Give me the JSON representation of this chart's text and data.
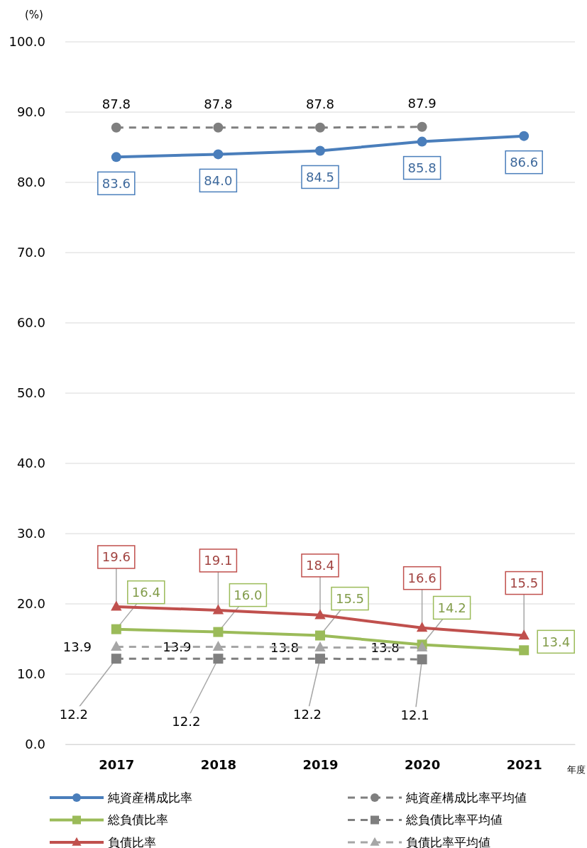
{
  "chart_data": {
    "type": "line",
    "ylabel": "(%)",
    "xlabel": "年度",
    "categories": [
      "2017",
      "2018",
      "2019",
      "2020",
      "2021"
    ],
    "ylim": [
      0,
      100
    ],
    "yticks": [
      {
        "value": 0,
        "label": "0.0"
      },
      {
        "value": 10,
        "label": "10.0"
      },
      {
        "value": 20,
        "label": "20.0"
      },
      {
        "value": 30,
        "label": "30.0"
      },
      {
        "value": 40,
        "label": "40.0"
      },
      {
        "value": 50,
        "label": "50.0"
      },
      {
        "value": 60,
        "label": "60.0"
      },
      {
        "value": 70,
        "label": "70.0"
      },
      {
        "value": 80,
        "label": "80.0"
      },
      {
        "value": 90,
        "label": "90.0"
      },
      {
        "value": 100,
        "label": "100.0"
      }
    ],
    "grid": "y",
    "legend": "bottom",
    "series": [
      {
        "name": "純資産構成比率",
        "color": "#4a7ebb",
        "marker": "circle",
        "line_style": "solid",
        "values": [
          83.6,
          84.0,
          84.5,
          85.8,
          86.6
        ],
        "value_labels": [
          "83.6",
          "84.0",
          "84.5",
          "85.8",
          "86.6"
        ]
      },
      {
        "name": "純資産構成比率平均値",
        "color": "#7f7f7f",
        "marker": "circle",
        "line_style": "dashed",
        "values": [
          87.8,
          87.8,
          87.8,
          87.9,
          null
        ],
        "value_labels": [
          "87.8",
          "87.8",
          "87.8",
          "87.9",
          null
        ]
      },
      {
        "name": "総負債比率",
        "color": "#9bbb59",
        "marker": "square",
        "line_style": "solid",
        "values": [
          16.4,
          16.0,
          15.5,
          14.2,
          13.4
        ],
        "value_labels": [
          "16.4",
          "16.0",
          "15.5",
          "14.2",
          "13.4"
        ]
      },
      {
        "name": "総負債比率平均値",
        "color": "#7f7f7f",
        "marker": "square",
        "line_style": "dashed",
        "values": [
          12.2,
          12.2,
          12.2,
          12.1,
          null
        ],
        "value_labels": [
          "12.2",
          "12.2",
          "12.2",
          "12.1",
          null
        ]
      },
      {
        "name": "負債比率",
        "color": "#c0504d",
        "marker": "triangle",
        "line_style": "solid",
        "values": [
          19.6,
          19.1,
          18.4,
          16.6,
          15.5
        ],
        "value_labels": [
          "19.6",
          "19.1",
          "18.4",
          "16.6",
          "15.5"
        ]
      },
      {
        "name": "負債比率平均値",
        "color": "#a6a6a6",
        "marker": "triangle",
        "line_style": "dashed",
        "values": [
          13.9,
          13.9,
          13.8,
          13.8,
          null
        ],
        "value_labels": [
          "13.9",
          "13.9",
          "13.8",
          "13.8",
          null
        ]
      }
    ]
  }
}
